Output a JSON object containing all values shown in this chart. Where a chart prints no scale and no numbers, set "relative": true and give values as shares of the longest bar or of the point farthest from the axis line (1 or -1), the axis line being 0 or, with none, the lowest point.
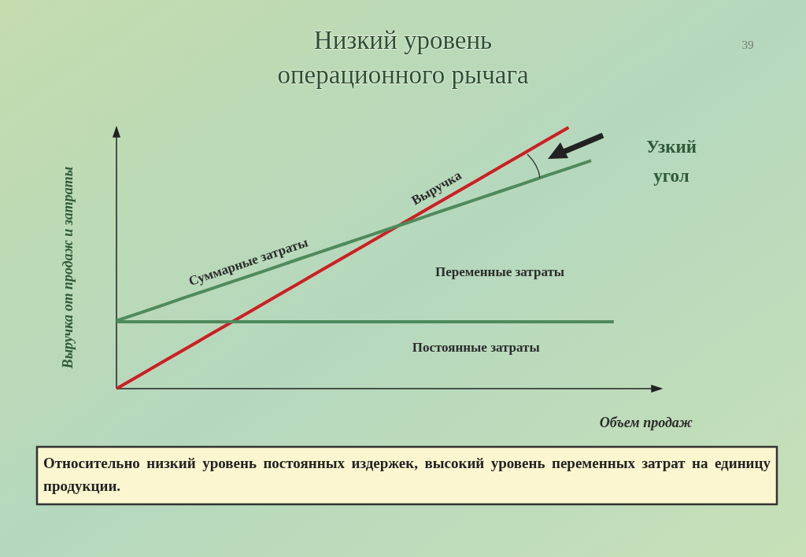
{
  "chart_data": {
    "type": "line",
    "title": "Низкий уровень операционного рычага",
    "relative": true,
    "xlabel": "Объем продаж",
    "ylabel": "Выручка от продаж и затраты",
    "line_style": "solid",
    "categories": [
      null,
      null,
      null,
      null,
      null,
      null,
      null,
      null,
      null,
      null,
      null,
      null,
      null,
      null,
      null,
      null,
      null,
      null,
      null,
      null,
      null,
      null,
      null
    ],
    "series": [
      {
        "name": "Выручка",
        "color": "#cc1f24",
        "values": [
          0,
          0.05,
          0.1,
          0.15,
          0.2,
          0.25,
          0.3,
          0.35,
          0.4,
          0.45,
          0.5,
          0.55,
          0.6,
          0.65,
          0.7,
          0.75,
          0.8,
          0.85,
          0.9,
          0.95,
          1,
          null,
          null
        ]
      },
      {
        "name": "Суммарные затраты",
        "color": "#4f8a5c",
        "values": [
          0.26,
          0.289,
          0.318,
          0.348,
          0.377,
          0.406,
          0.435,
          0.464,
          0.494,
          0.523,
          0.552,
          0.581,
          0.61,
          0.639,
          0.669,
          0.698,
          0.727,
          0.756,
          0.785,
          0.815,
          0.844,
          0.873,
          null
        ]
      },
      {
        "name": "Постоянные затраты",
        "color": "#4f8a5c",
        "values": [
          0.256,
          0.256,
          0.256,
          0.256,
          0.256,
          0.256,
          0.256,
          0.256,
          0.256,
          0.256,
          0.256,
          0.256,
          0.256,
          0.256,
          0.256,
          0.256,
          0.256,
          0.256,
          0.256,
          0.256,
          0.256,
          0.256,
          0.256
        ]
      }
    ],
    "annotations": [
      "39",
      "Переменные затраты",
      "Узкий угол",
      "Относительно низкий уровень постоянных издержек, высокий уровень переменных затрат на единицу продукции."
    ]
  }
}
